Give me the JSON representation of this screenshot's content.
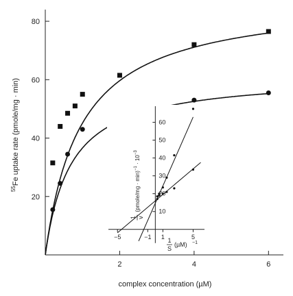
{
  "chart_data": [
    {
      "type": "line",
      "title": "",
      "xlabel": "complex concentration (µM)",
      "ylabel": "55Fe uptake rate (pmole/mg · min)",
      "ylabel_parts": {
        "sup": "55",
        "main": "Fe uptake rate (pmole/mg · min)"
      },
      "xlim": [
        0,
        6.4
      ],
      "ylim": [
        0,
        84
      ],
      "x_ticks": [
        2,
        4,
        6
      ],
      "y_ticks": [
        20,
        40,
        60,
        80
      ],
      "series": [
        {
          "marker": "square",
          "points": [
            [
              0.2,
              31.5
            ],
            [
              0.4,
              44
            ],
            [
              0.6,
              48.5
            ],
            [
              0.8,
              51
            ],
            [
              1.0,
              55
            ],
            [
              2.0,
              61.5
            ],
            [
              4.0,
              72
            ],
            [
              6.0,
              76.5
            ]
          ],
          "curve": {
            "vmax": 88,
            "km": 0.95
          }
        },
        {
          "marker": "circle",
          "points": [
            [
              0.2,
              15.5
            ],
            [
              0.4,
              24.5
            ],
            [
              0.6,
              34.5
            ],
            [
              1.0,
              43
            ],
            [
              2.0,
              50.5
            ],
            [
              4.0,
              53
            ],
            [
              6.0,
              55.5
            ]
          ],
          "curve": {
            "vmax": 61.5,
            "km": 0.68
          }
        }
      ]
    },
    {
      "type": "scatter",
      "title": "",
      "xlabel_parts": {
        "num": "1",
        "den": "S",
        "unit": "(µM)",
        "exp": "−1"
      },
      "ylabel_parts": {
        "num": "1",
        "den": "v",
        "unit": "(pmole/mg · min)",
        "exp": "−1",
        "scale": "· 10",
        "scale_exp": "−3"
      },
      "xlim": [
        -6.2,
        6.5
      ],
      "ylim": [
        -2,
        69
      ],
      "x_ticks": [
        -5,
        -1,
        1,
        5
      ],
      "x_tick_labels": [
        "−5",
        "−1",
        "1",
        "5"
      ],
      "y_ticks": [
        10,
        20,
        30,
        40,
        50,
        60
      ],
      "y_tick_labels": [
        "10",
        "20",
        "30",
        "40",
        "50",
        "60"
      ],
      "series": [
        {
          "points": [
            [
              0.25,
              17
            ],
            [
              0.5,
              19
            ],
            [
              1,
              23.5
            ],
            [
              1.5,
              29
            ],
            [
              2.5,
              41.5
            ],
            [
              5,
              67.5
            ]
          ],
          "fit": {
            "slope": 9.65,
            "intercept": 14.7,
            "x_range": [
              -2.2,
              5.0
            ]
          }
        },
        {
          "points": [
            [
              0.25,
              18.5
            ],
            [
              0.5,
              20
            ],
            [
              1,
              20
            ],
            [
              1.5,
              21
            ],
            [
              2.5,
              23
            ],
            [
              5,
              33.5
            ]
          ],
          "fit": {
            "slope": 3.58,
            "intercept": 16.0,
            "x_range": [
              -5.0,
              6.0
            ]
          }
        }
      ]
    }
  ]
}
